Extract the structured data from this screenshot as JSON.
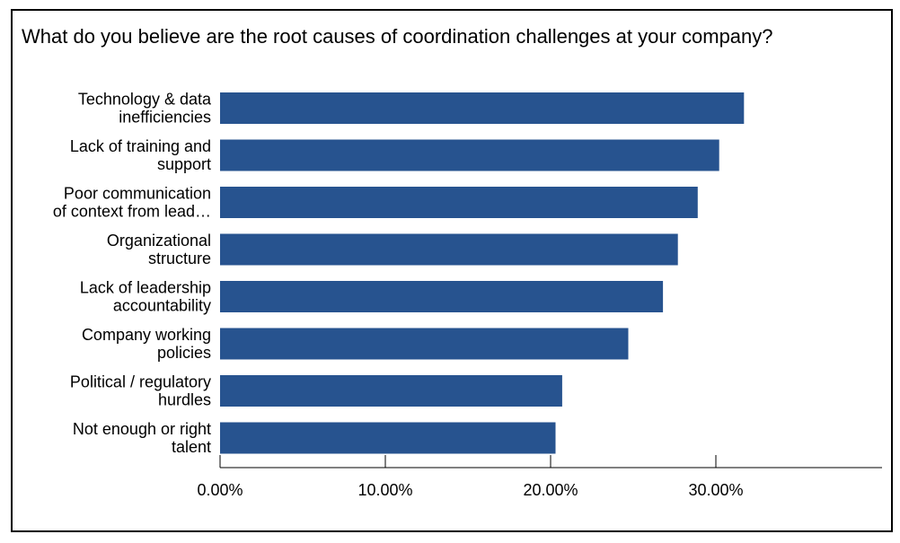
{
  "title": "What do you believe are the root causes of coordination challenges at your company?",
  "colors": {
    "bar": "#27538F",
    "axis": "#000000",
    "frame": "#000000"
  },
  "chart_data": {
    "type": "bar",
    "orientation": "horizontal",
    "title": "What do you believe are the root causes of coordination challenges at your company?",
    "xlabel": "",
    "ylabel": "",
    "xlim": [
      0,
      0.4
    ],
    "grid": false,
    "legend": "none",
    "categories": [
      [
        "Technology & data",
        "inefficiencies"
      ],
      [
        "Lack of training and",
        "support"
      ],
      [
        "Poor communication",
        "of context from lead…"
      ],
      [
        "Organizational",
        "structure"
      ],
      [
        "Lack of leadership",
        "accountability"
      ],
      [
        "Company working",
        "policies"
      ],
      [
        "Political / regulatory",
        "hurdles"
      ],
      [
        "Not enough or right",
        "talent"
      ]
    ],
    "values": [
      0.317,
      0.302,
      0.289,
      0.277,
      0.268,
      0.247,
      0.207,
      0.203
    ],
    "xticks": [
      0,
      0.1,
      0.2,
      0.3
    ],
    "xtick_labels": [
      "0.00%",
      "10.00%",
      "20.00%",
      "30.00%"
    ]
  }
}
